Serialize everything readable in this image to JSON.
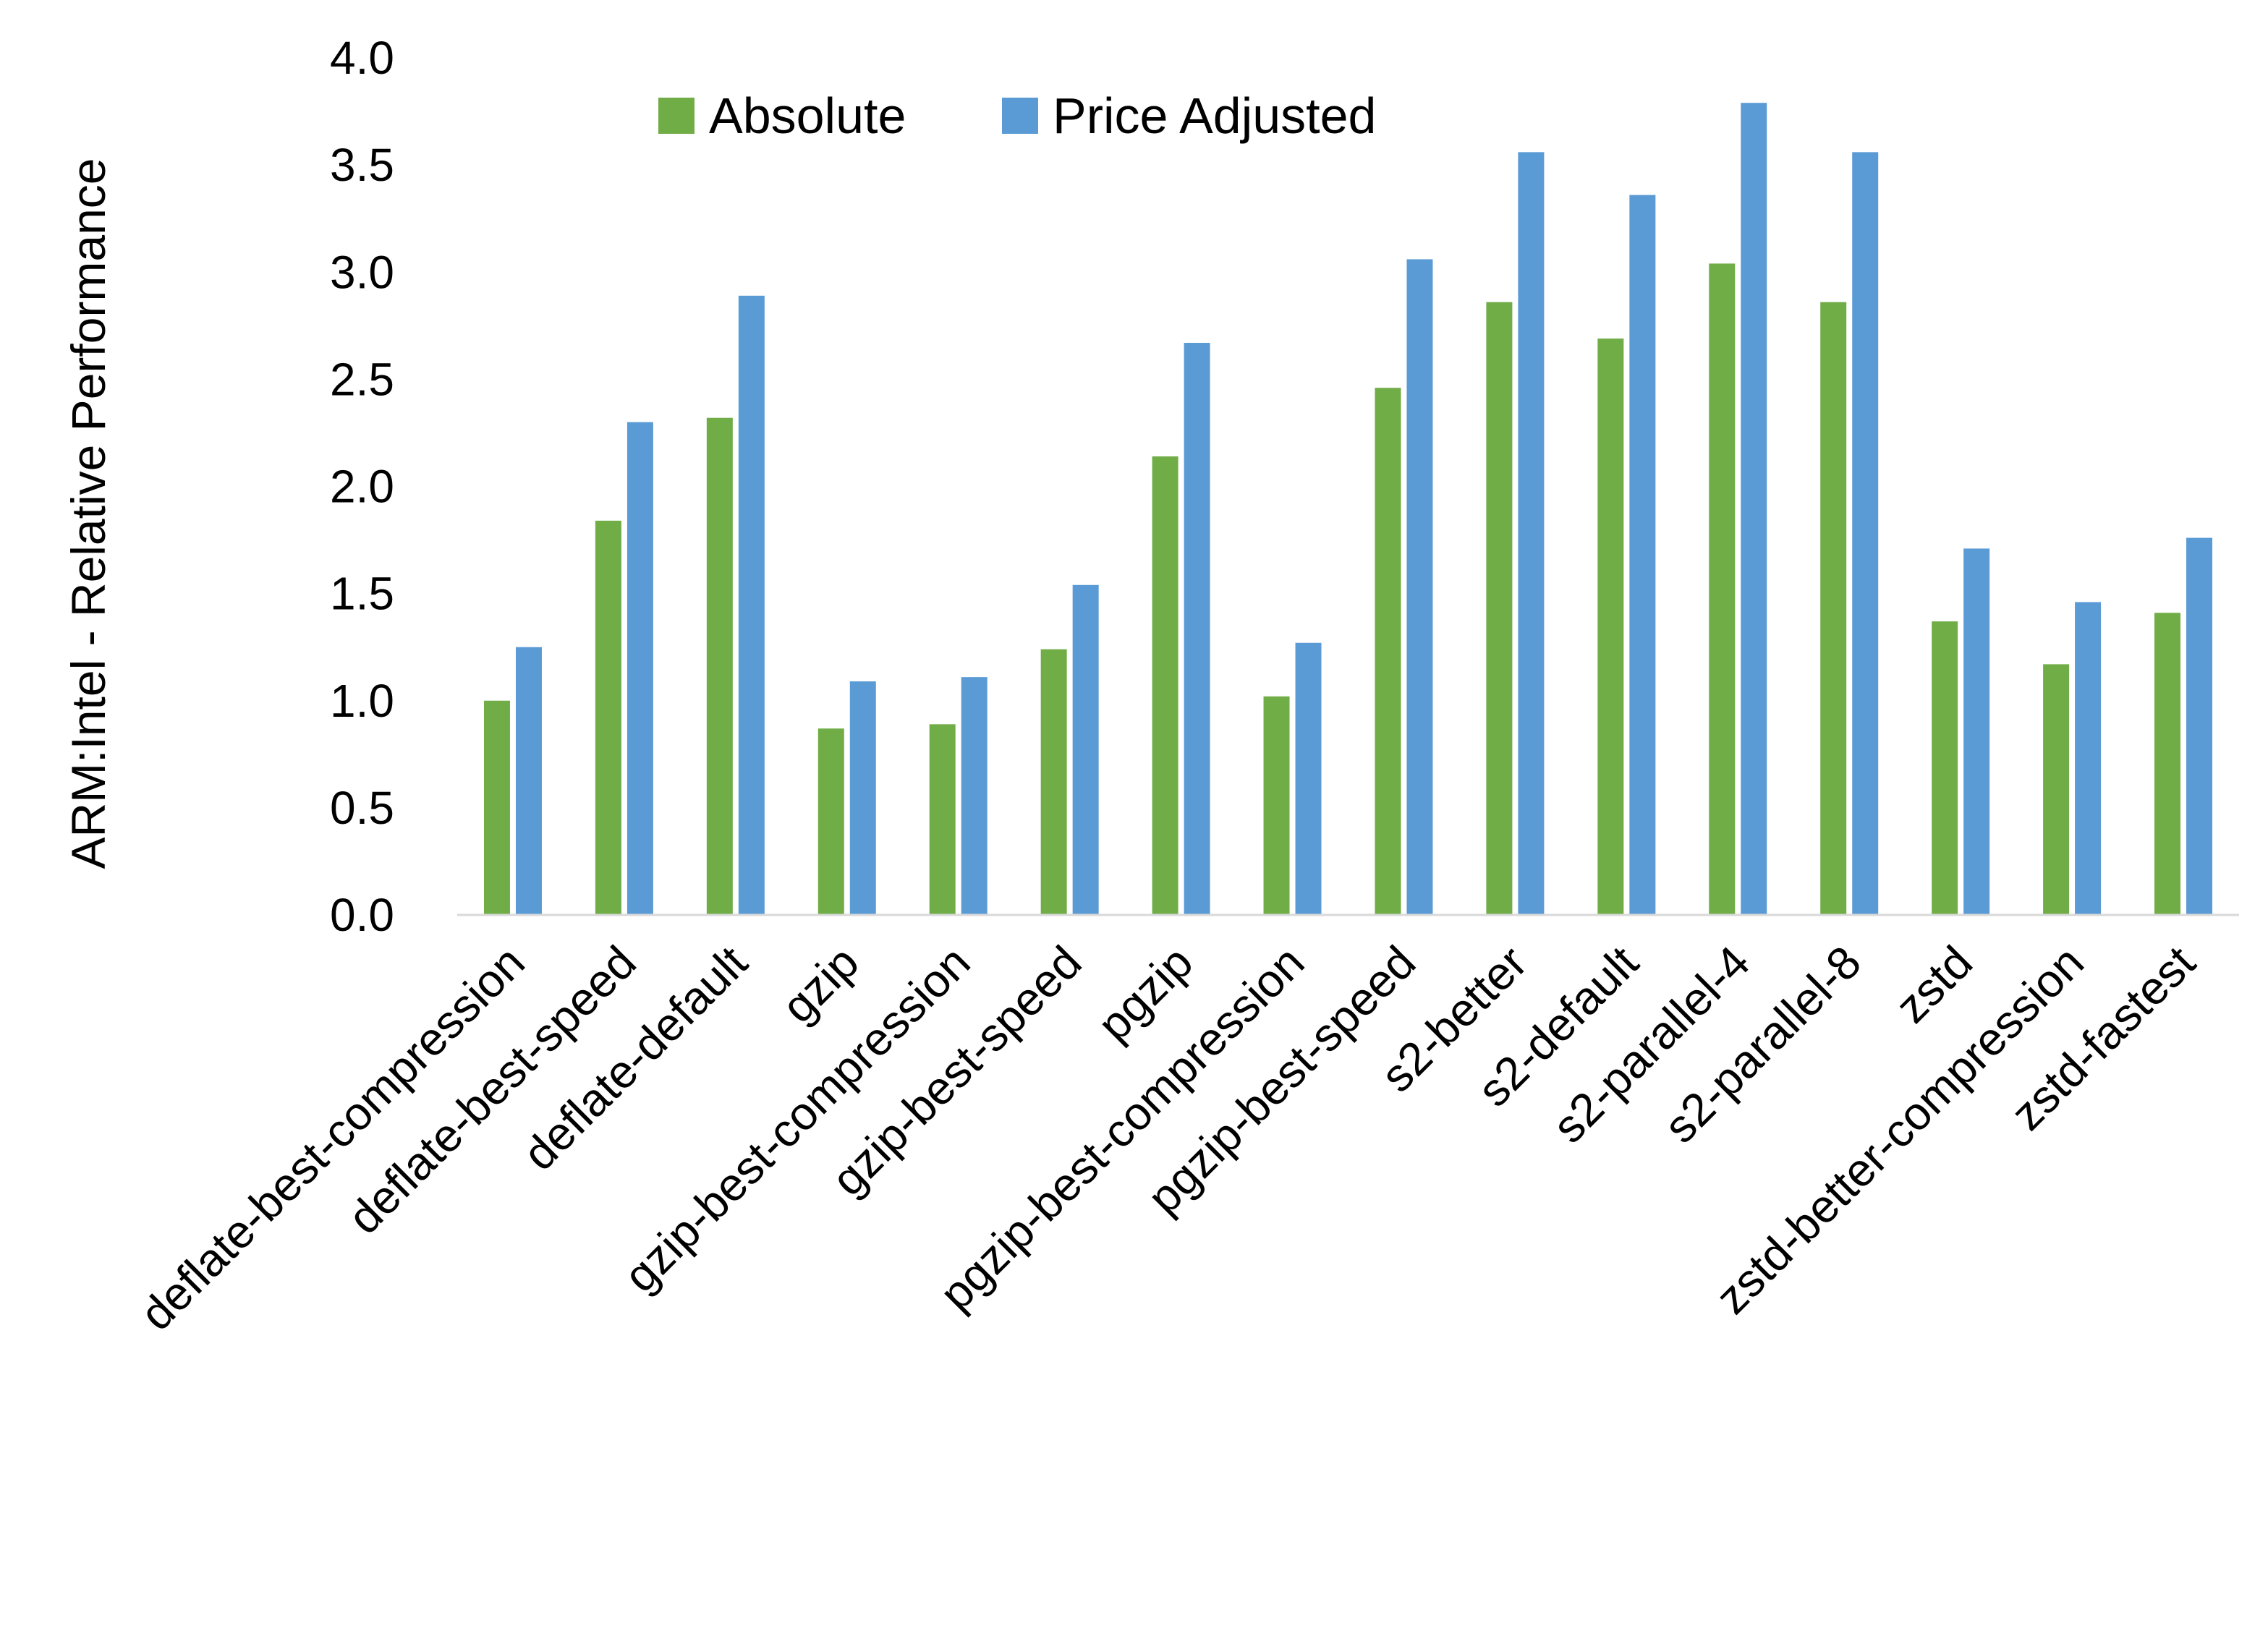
{
  "chart_data": {
    "type": "bar",
    "title": "",
    "xlabel": "",
    "ylabel": "ARM:Intel - Relative Performance",
    "ylim": [
      0,
      4.0
    ],
    "yticks": [
      "0.0",
      "0.5",
      "1.0",
      "1.5",
      "2.0",
      "2.5",
      "3.0",
      "3.5",
      "4.0"
    ],
    "grid": false,
    "legend_position": "top",
    "categories": [
      "deflate-best-compression",
      "deflate-best-speed",
      "deflate-default",
      "gzip",
      "gzip-best-compression",
      "gzip-best-speed",
      "pgzip",
      "pgzip-best-compression",
      "pgzip-best-speed",
      "s2-better",
      "s2-default",
      "s2-parallel-4",
      "s2-parallel-8",
      "zstd",
      "zstd-better-compression",
      "zstd-fastest"
    ],
    "series": [
      {
        "name": "Absolute",
        "color": "#70AD47",
        "values": [
          1.0,
          1.84,
          2.32,
          0.87,
          0.89,
          1.24,
          2.14,
          1.02,
          2.46,
          2.86,
          2.69,
          3.04,
          2.86,
          1.37,
          1.17,
          1.41
        ]
      },
      {
        "name": "Price Adjusted",
        "color": "#5B9BD5",
        "values": [
          1.25,
          2.3,
          2.89,
          1.09,
          1.11,
          1.54,
          2.67,
          1.27,
          3.06,
          3.56,
          3.36,
          3.79,
          3.56,
          1.71,
          1.46,
          1.76
        ]
      }
    ]
  }
}
